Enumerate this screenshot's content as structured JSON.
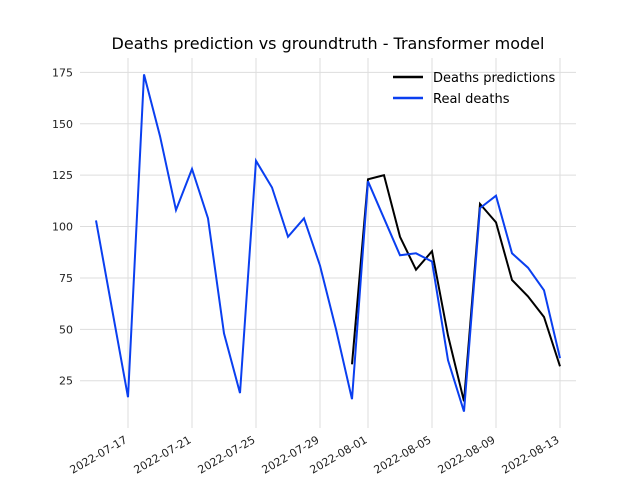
{
  "chart_data": {
    "type": "line",
    "title": "Deaths prediction vs groundtruth - Transformer model",
    "xlabel": "",
    "ylabel": "",
    "ylim": [
      2,
      182
    ],
    "xlim": [
      "2022-07-14",
      "2022-08-14"
    ],
    "yticks": [
      25,
      50,
      75,
      100,
      125,
      150,
      175
    ],
    "xticks": [
      "2022-07-17",
      "2022-07-21",
      "2022-07-25",
      "2022-07-29",
      "2022-08-01",
      "2022-08-05",
      "2022-08-09",
      "2022-08-13"
    ],
    "grid": true,
    "legend_position": "top-right",
    "series": [
      {
        "name": "Deaths predictions",
        "color": "#000000",
        "x": [
          "2022-07-31",
          "2022-08-01",
          "2022-08-02",
          "2022-08-03",
          "2022-08-04",
          "2022-08-05",
          "2022-08-06",
          "2022-08-07",
          "2022-08-08",
          "2022-08-09",
          "2022-08-10",
          "2022-08-11",
          "2022-08-12",
          "2022-08-13"
        ],
        "values": [
          33,
          123,
          125,
          95,
          79,
          88,
          47,
          15,
          111,
          102,
          74,
          66,
          56,
          32
        ]
      },
      {
        "name": "Real deaths",
        "color": "#0a3ff0",
        "x": [
          "2022-07-15",
          "2022-07-16",
          "2022-07-17",
          "2022-07-18",
          "2022-07-19",
          "2022-07-20",
          "2022-07-21",
          "2022-07-22",
          "2022-07-23",
          "2022-07-24",
          "2022-07-25",
          "2022-07-26",
          "2022-07-27",
          "2022-07-28",
          "2022-07-29",
          "2022-07-30",
          "2022-07-31",
          "2022-08-01",
          "2022-08-02",
          "2022-08-03",
          "2022-08-04",
          "2022-08-05",
          "2022-08-06",
          "2022-08-07",
          "2022-08-08",
          "2022-08-09",
          "2022-08-10",
          "2022-08-11",
          "2022-08-12",
          "2022-08-13"
        ],
        "values": [
          103,
          60,
          17,
          174,
          144,
          108,
          128,
          104,
          48,
          19,
          132,
          119,
          95,
          104,
          81,
          50,
          16,
          122,
          104,
          86,
          87,
          83,
          35,
          10,
          109,
          115,
          87,
          80,
          69,
          36
        ]
      }
    ]
  }
}
